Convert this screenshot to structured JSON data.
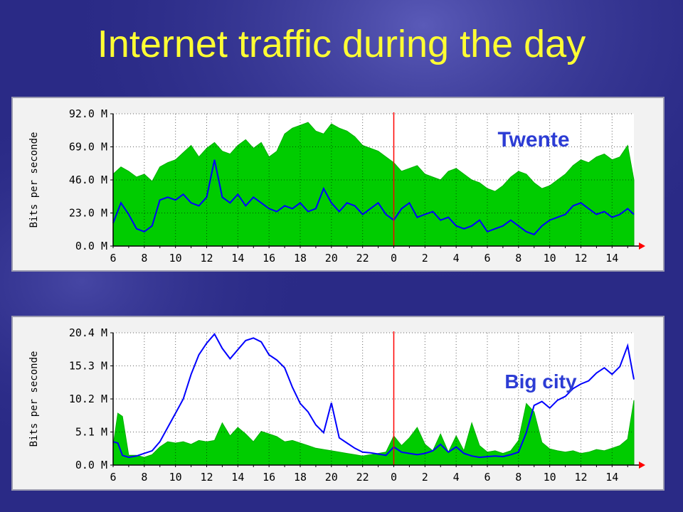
{
  "slide": {
    "title": "Internet traffic during the day"
  },
  "colors": {
    "background": "#2a2a86",
    "title": "#ffff33",
    "incoming_area": "#00cc00",
    "outgoing_line": "#0000ff",
    "now_marker": "#ff0000",
    "annotation": "#2c3cd4"
  },
  "chart_data": [
    {
      "type": "area",
      "annotation": "Twente",
      "ylabel": "Bits per seconde",
      "y_ticks": [
        "0.0 M",
        "23.0 M",
        "46.0 M",
        "69.0 M",
        "92.0 M"
      ],
      "ylim": [
        0,
        92
      ],
      "x_ticks": [
        "6",
        "8",
        "10",
        "12",
        "14",
        "16",
        "18",
        "20",
        "22",
        "0",
        "2",
        "4",
        "6",
        "8",
        "10",
        "12",
        "14"
      ],
      "xlim": [
        0,
        33.4
      ],
      "x_units": "hours since 06:00",
      "now_marker_x": 18,
      "grid": true,
      "series": [
        {
          "style": "area",
          "x": [
            0,
            0.5,
            1,
            1.5,
            2,
            2.5,
            3,
            3.5,
            4,
            4.5,
            5,
            5.5,
            6,
            6.5,
            7,
            7.5,
            8,
            8.5,
            9,
            9.5,
            10,
            10.5,
            11,
            11.5,
            12,
            12.5,
            13,
            13.5,
            14,
            14.5,
            15,
            15.5,
            16,
            16.5,
            17,
            17.5,
            18,
            18.5,
            19,
            19.5,
            20,
            20.5,
            21,
            21.5,
            22,
            22.5,
            23,
            23.5,
            24,
            24.5,
            25,
            25.5,
            26,
            26.5,
            27,
            27.5,
            28,
            28.5,
            29,
            29.5,
            30,
            30.5,
            31,
            31.5,
            32,
            32.5,
            33,
            33.4
          ],
          "values": [
            50,
            55,
            52,
            48,
            50,
            45,
            55,
            58,
            60,
            65,
            70,
            62,
            68,
            72,
            66,
            64,
            70,
            74,
            68,
            72,
            62,
            66,
            78,
            82,
            84,
            86,
            80,
            78,
            85,
            82,
            80,
            76,
            70,
            68,
            66,
            62,
            58,
            52,
            54,
            56,
            50,
            48,
            46,
            52,
            54,
            50,
            46,
            44,
            40,
            38,
            42,
            48,
            52,
            50,
            44,
            40,
            42,
            46,
            50,
            56,
            60,
            58,
            62,
            64,
            60,
            62,
            70,
            46
          ]
        },
        {
          "style": "line",
          "x": [
            0,
            0.5,
            1,
            1.5,
            2,
            2.5,
            3,
            3.5,
            4,
            4.5,
            5,
            5.5,
            6,
            6.5,
            7,
            7.5,
            8,
            8.5,
            9,
            9.5,
            10,
            10.5,
            11,
            11.5,
            12,
            12.5,
            13,
            13.5,
            14,
            14.5,
            15,
            15.5,
            16,
            16.5,
            17,
            17.5,
            18,
            18.5,
            19,
            19.5,
            20,
            20.5,
            21,
            21.5,
            22,
            22.5,
            23,
            23.5,
            24,
            24.5,
            25,
            25.5,
            26,
            26.5,
            27,
            27.5,
            28,
            28.5,
            29,
            29.5,
            30,
            30.5,
            31,
            31.5,
            32,
            32.5,
            33,
            33.4
          ],
          "values": [
            16,
            30,
            22,
            12,
            10,
            14,
            32,
            34,
            32,
            36,
            30,
            28,
            34,
            60,
            34,
            30,
            36,
            28,
            34,
            30,
            26,
            24,
            28,
            26,
            30,
            24,
            26,
            40,
            30,
            24,
            30,
            28,
            22,
            26,
            30,
            22,
            18,
            26,
            30,
            20,
            22,
            24,
            18,
            20,
            14,
            12,
            14,
            18,
            10,
            12,
            14,
            18,
            14,
            10,
            8,
            14,
            18,
            20,
            22,
            28,
            30,
            26,
            22,
            24,
            20,
            22,
            26,
            22
          ]
        }
      ]
    },
    {
      "type": "area",
      "annotation": "Big city",
      "ylabel": "Bits per seconde",
      "y_ticks": [
        "0.0 M",
        "5.1 M",
        "10.2 M",
        "15.3 M",
        "20.4 M"
      ],
      "ylim": [
        0,
        20.4
      ],
      "x_ticks": [
        "6",
        "8",
        "10",
        "12",
        "14",
        "16",
        "18",
        "20",
        "22",
        "0",
        "2",
        "4",
        "6",
        "8",
        "10",
        "12",
        "14"
      ],
      "xlim": [
        0,
        33.4
      ],
      "x_units": "hours since 06:00",
      "now_marker_x": 18,
      "grid": true,
      "series": [
        {
          "style": "area",
          "x": [
            0,
            0.3,
            0.6,
            1,
            1.5,
            2,
            2.5,
            3,
            3.5,
            4,
            4.5,
            5,
            5.5,
            6,
            6.5,
            7,
            7.5,
            8,
            8.5,
            9,
            9.5,
            10,
            10.5,
            11,
            11.5,
            12,
            12.5,
            13,
            13.5,
            14,
            14.5,
            15,
            15.5,
            16,
            16.5,
            17,
            17.5,
            18,
            18.5,
            19,
            19.5,
            20,
            20.5,
            21,
            21.5,
            22,
            22.5,
            23,
            23.5,
            24,
            24.5,
            25,
            25.5,
            26,
            26.5,
            27,
            27.5,
            28,
            28.5,
            29,
            29.5,
            30,
            30.5,
            31,
            31.5,
            32,
            32.5,
            33,
            33.4
          ],
          "values": [
            3,
            8,
            7.5,
            1.5,
            1.5,
            1.2,
            1.6,
            2.8,
            3.6,
            3.4,
            3.6,
            3.2,
            3.8,
            3.6,
            3.8,
            6.5,
            4.5,
            5.8,
            4.8,
            3.6,
            5.2,
            4.8,
            4.4,
            3.6,
            3.8,
            3.4,
            3.0,
            2.6,
            2.4,
            2.2,
            2.0,
            1.8,
            1.6,
            1.4,
            1.6,
            1.8,
            2.0,
            4.5,
            3.0,
            4.2,
            5.8,
            3.2,
            2.2,
            4.8,
            2.0,
            4.5,
            2.2,
            6.5,
            3.0,
            2.0,
            2.2,
            1.8,
            2.2,
            3.8,
            9.5,
            8.2,
            3.5,
            2.5,
            2.2,
            2.0,
            2.2,
            1.8,
            2.0,
            2.4,
            2.2,
            2.6,
            3.0,
            4.0,
            10.0
          ]
        },
        {
          "style": "line",
          "x": [
            0,
            0.3,
            0.6,
            1,
            1.5,
            2,
            2.5,
            3,
            3.5,
            4,
            4.5,
            5,
            5.5,
            6,
            6.5,
            7,
            7.5,
            8,
            8.5,
            9,
            9.5,
            10,
            10.5,
            11,
            11.5,
            12,
            12.5,
            13,
            13.5,
            14,
            14.5,
            15,
            15.5,
            16,
            16.5,
            17,
            17.5,
            18,
            18.5,
            19,
            19.5,
            20,
            20.5,
            21,
            21.5,
            22,
            22.5,
            23,
            23.5,
            24,
            24.5,
            25,
            25.5,
            26,
            26.5,
            27,
            27.5,
            28,
            28.5,
            29,
            29.5,
            30,
            30.5,
            31,
            31.5,
            32,
            32.5,
            33,
            33.4
          ],
          "values": [
            3.6,
            3.4,
            1.5,
            1.2,
            1.4,
            1.8,
            2.2,
            3.6,
            5.8,
            8.0,
            10.2,
            14.0,
            17.0,
            18.8,
            20.2,
            18.0,
            16.4,
            17.8,
            19.2,
            19.6,
            19.0,
            17.0,
            16.2,
            15.0,
            12.0,
            9.5,
            8.2,
            6.2,
            5.0,
            9.6,
            4.2,
            3.4,
            2.6,
            2.0,
            1.9,
            1.7,
            1.5,
            2.8,
            2.0,
            1.8,
            1.6,
            1.8,
            2.2,
            3.2,
            2.0,
            2.8,
            1.8,
            1.4,
            1.2,
            1.3,
            1.4,
            1.3,
            1.6,
            2.0,
            5.0,
            9.2,
            9.8,
            8.8,
            10.0,
            10.6,
            11.8,
            12.5,
            13.0,
            14.2,
            15.0,
            14.0,
            15.2,
            18.4,
            13.2
          ]
        }
      ]
    }
  ]
}
